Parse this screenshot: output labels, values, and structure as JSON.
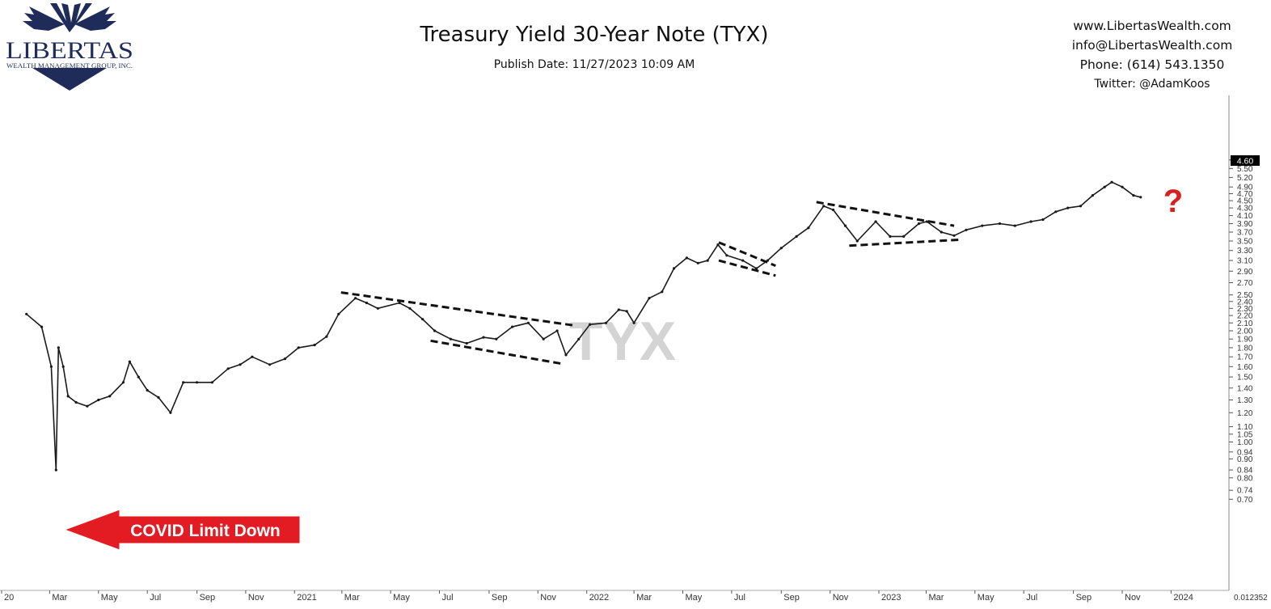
{
  "header": {
    "title": "Treasury Yield 30-Year Note (TYX)",
    "publish_date": "Publish Date: 11/27/2023 10:09 AM",
    "logo_text": "LIBERTAS",
    "logo_subtext": "WEALTH MANAGEMENT GROUP, INC.",
    "contact": {
      "website": "www.LibertasWealth.com",
      "email": "info@LibertasWealth.com",
      "phone": "Phone:  (614) 543.1350",
      "twitter": "Twitter:  @AdamKoos"
    }
  },
  "colors": {
    "logo_navy": "#1f2c5a",
    "arrow_red": "#e31b23",
    "question_red": "#d9201f",
    "price_badge": "#000000",
    "watermark": "#d4d4d4"
  },
  "chart_data": {
    "type": "line",
    "scale": "log",
    "watermark": "TYX",
    "last_price_label": "4.60",
    "y_ticks": [
      "5.80",
      "5.50",
      "5.20",
      "4.90",
      "4.70",
      "4.50",
      "4.30",
      "4.10",
      "3.90",
      "3.70",
      "3.50",
      "3.30",
      "3.10",
      "2.90",
      "2.70",
      "2.50",
      "2.40",
      "2.30",
      "2.20",
      "2.10",
      "2.00",
      "1.90",
      "1.80",
      "1.70",
      "1.60",
      "1.50",
      "1.40",
      "1.30",
      "1.20",
      "1.10",
      "1.05",
      "1.00",
      "0.94",
      "0.90",
      "0.84",
      "0.80",
      "0.74",
      "0.70"
    ],
    "x_ticks": [
      "20",
      "Mar",
      "May",
      "Jul",
      "Sep",
      "Nov",
      "2021",
      "Mar",
      "May",
      "Jul",
      "Sep",
      "Nov",
      "2022",
      "Mar",
      "May",
      "Jul",
      "Sep",
      "Nov",
      "2023",
      "Mar",
      "May",
      "Jul",
      "Sep",
      "Nov",
      "2024"
    ],
    "x_tick_dates": [
      "2020-01",
      "2020-03",
      "2020-05",
      "2020-07",
      "2020-09",
      "2020-11",
      "2021-01",
      "2021-03",
      "2021-05",
      "2021-07",
      "2021-09",
      "2021-11",
      "2022-01",
      "2022-03",
      "2022-05",
      "2022-07",
      "2022-09",
      "2022-11",
      "2023-01",
      "2023-03",
      "2023-05",
      "2023-07",
      "2023-09",
      "2023-11",
      "2024-01"
    ],
    "corner_label": "0.012352",
    "series": [
      {
        "values": [
          [
            "2020-02-01",
            2.22
          ],
          [
            "2020-02-20",
            2.05
          ],
          [
            "2020-03-03",
            1.6
          ],
          [
            "2020-03-09",
            0.84
          ],
          [
            "2020-03-12",
            1.8
          ],
          [
            "2020-03-18",
            1.6
          ],
          [
            "2020-03-24",
            1.33
          ],
          [
            "2020-04-03",
            1.28
          ],
          [
            "2020-04-17",
            1.25
          ],
          [
            "2020-05-01",
            1.3
          ],
          [
            "2020-05-15",
            1.33
          ],
          [
            "2020-06-01",
            1.45
          ],
          [
            "2020-06-09",
            1.65
          ],
          [
            "2020-06-20",
            1.5
          ],
          [
            "2020-07-01",
            1.38
          ],
          [
            "2020-07-15",
            1.32
          ],
          [
            "2020-07-30",
            1.2
          ],
          [
            "2020-08-15",
            1.45
          ],
          [
            "2020-09-01",
            1.45
          ],
          [
            "2020-09-20",
            1.45
          ],
          [
            "2020-10-10",
            1.58
          ],
          [
            "2020-10-25",
            1.62
          ],
          [
            "2020-11-09",
            1.7
          ],
          [
            "2020-12-01",
            1.62
          ],
          [
            "2020-12-20",
            1.68
          ],
          [
            "2021-01-06",
            1.8
          ],
          [
            "2021-01-26",
            1.83
          ],
          [
            "2021-02-10",
            1.93
          ],
          [
            "2021-02-25",
            2.22
          ],
          [
            "2021-03-18",
            2.45
          ],
          [
            "2021-04-01",
            2.38
          ],
          [
            "2021-04-15",
            2.3
          ],
          [
            "2021-05-12",
            2.38
          ],
          [
            "2021-05-25",
            2.3
          ],
          [
            "2021-06-10",
            2.15
          ],
          [
            "2021-06-25",
            2.0
          ],
          [
            "2021-07-15",
            1.9
          ],
          [
            "2021-08-04",
            1.85
          ],
          [
            "2021-08-25",
            1.92
          ],
          [
            "2021-09-10",
            1.9
          ],
          [
            "2021-09-30",
            2.05
          ],
          [
            "2021-10-20",
            2.1
          ],
          [
            "2021-11-08",
            1.9
          ],
          [
            "2021-11-25",
            2.0
          ],
          [
            "2021-12-06",
            1.72
          ],
          [
            "2021-12-22",
            1.9
          ],
          [
            "2022-01-05",
            2.08
          ],
          [
            "2022-01-25",
            2.1
          ],
          [
            "2022-02-10",
            2.28
          ],
          [
            "2022-02-20",
            2.26
          ],
          [
            "2022-03-01",
            2.1
          ],
          [
            "2022-03-20",
            2.45
          ],
          [
            "2022-04-05",
            2.55
          ],
          [
            "2022-04-20",
            2.95
          ],
          [
            "2022-05-06",
            3.15
          ],
          [
            "2022-05-20",
            3.05
          ],
          [
            "2022-06-01",
            3.1
          ],
          [
            "2022-06-14",
            3.42
          ],
          [
            "2022-06-25",
            3.2
          ],
          [
            "2022-07-15",
            3.1
          ],
          [
            "2022-08-01",
            2.95
          ],
          [
            "2022-08-15",
            3.1
          ],
          [
            "2022-09-01",
            3.35
          ],
          [
            "2022-09-20",
            3.6
          ],
          [
            "2022-10-05",
            3.8
          ],
          [
            "2022-10-24",
            4.35
          ],
          [
            "2022-11-05",
            4.25
          ],
          [
            "2022-11-20",
            3.85
          ],
          [
            "2022-12-05",
            3.5
          ],
          [
            "2022-12-28",
            3.95
          ],
          [
            "2023-01-15",
            3.6
          ],
          [
            "2023-02-01",
            3.6
          ],
          [
            "2023-02-20",
            3.9
          ],
          [
            "2023-03-02",
            3.95
          ],
          [
            "2023-03-20",
            3.7
          ],
          [
            "2023-04-05",
            3.62
          ],
          [
            "2023-04-20",
            3.75
          ],
          [
            "2023-05-10",
            3.85
          ],
          [
            "2023-06-01",
            3.9
          ],
          [
            "2023-06-20",
            3.85
          ],
          [
            "2023-07-10",
            3.95
          ],
          [
            "2023-07-25",
            4.0
          ],
          [
            "2023-08-10",
            4.2
          ],
          [
            "2023-08-25",
            4.3
          ],
          [
            "2023-09-10",
            4.35
          ],
          [
            "2023-09-25",
            4.65
          ],
          [
            "2023-10-10",
            4.9
          ],
          [
            "2023-10-19",
            5.05
          ],
          [
            "2023-11-01",
            4.9
          ],
          [
            "2023-11-15",
            4.65
          ],
          [
            "2023-11-24",
            4.6
          ]
        ]
      }
    ],
    "trendlines": [
      {
        "points": [
          [
            "2021-02-28",
            2.54
          ],
          [
            "2021-12-15",
            2.07
          ]
        ]
      },
      {
        "points": [
          [
            "2021-06-20",
            1.88
          ],
          [
            "2021-11-30",
            1.63
          ]
        ]
      },
      {
        "points": [
          [
            "2022-06-15",
            3.47
          ],
          [
            "2022-08-25",
            3.0
          ]
        ]
      },
      {
        "points": [
          [
            "2022-06-15",
            3.1
          ],
          [
            "2022-08-25",
            2.82
          ]
        ]
      },
      {
        "points": [
          [
            "2022-10-15",
            4.46
          ],
          [
            "2023-04-05",
            3.85
          ]
        ]
      },
      {
        "points": [
          [
            "2022-11-25",
            3.4
          ],
          [
            "2023-04-15",
            3.53
          ]
        ]
      }
    ],
    "annotations": [
      {
        "text": "COVID Limit Down"
      },
      {
        "text": "?"
      }
    ]
  }
}
